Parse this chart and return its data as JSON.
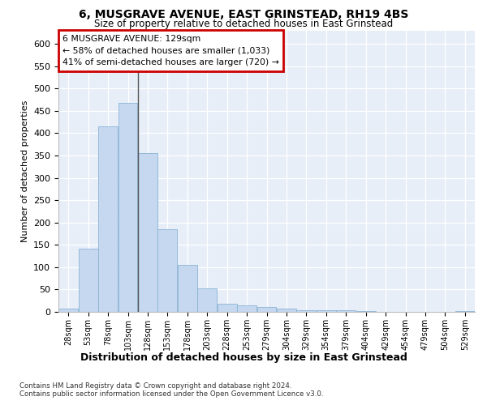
{
  "title1": "6, MUSGRAVE AVENUE, EAST GRINSTEAD, RH19 4BS",
  "title2": "Size of property relative to detached houses in East Grinstead",
  "xlabel": "Distribution of detached houses by size in East Grinstead",
  "ylabel": "Number of detached properties",
  "categories": [
    "28sqm",
    "53sqm",
    "78sqm",
    "103sqm",
    "128sqm",
    "153sqm",
    "178sqm",
    "203sqm",
    "228sqm",
    "253sqm",
    "279sqm",
    "304sqm",
    "329sqm",
    "354sqm",
    "379sqm",
    "404sqm",
    "429sqm",
    "454sqm",
    "479sqm",
    "504sqm",
    "529sqm"
  ],
  "values": [
    8,
    142,
    415,
    467,
    355,
    185,
    105,
    52,
    18,
    14,
    11,
    8,
    3,
    3,
    3,
    2,
    0,
    0,
    0,
    0,
    2
  ],
  "bar_color": "#c5d8f0",
  "bar_edge_color": "#8ab4d4",
  "highlight_line_color": "#555555",
  "annotation_title": "6 MUSGRAVE AVENUE: 129sqm",
  "annotation_line1": "← 58% of detached houses are smaller (1,033)",
  "annotation_line2": "41% of semi-detached houses are larger (720) →",
  "annotation_box_color": "#ffffff",
  "annotation_box_edge": "#cc0000",
  "footer1": "Contains HM Land Registry data © Crown copyright and database right 2024.",
  "footer2": "Contains public sector information licensed under the Open Government Licence v3.0.",
  "ylim": [
    0,
    630
  ],
  "fig_background": "#ffffff",
  "plot_background": "#e8eef8"
}
